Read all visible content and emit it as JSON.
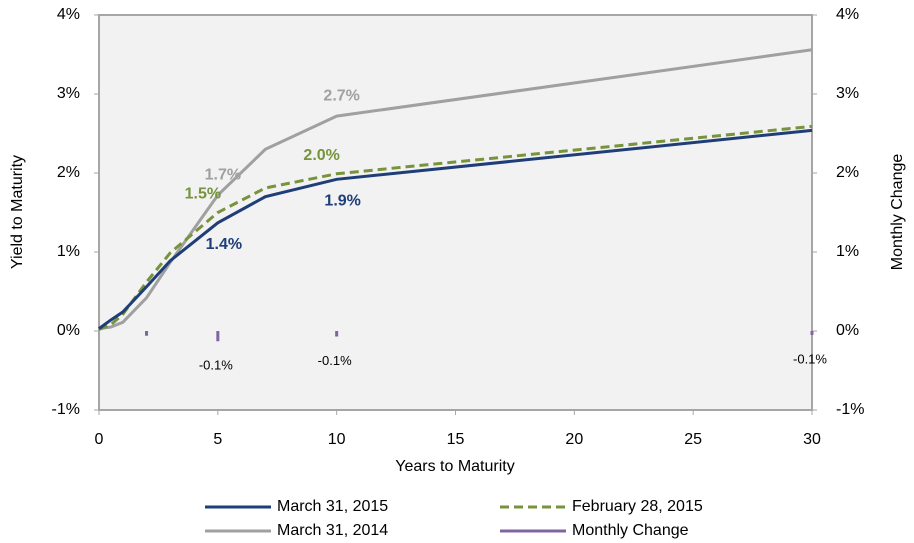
{
  "chart_data": {
    "type": "line",
    "x_label": "Years to Maturity",
    "y_label": "Yield to Maturity",
    "y2_label": "Monthly Change",
    "x": [
      0,
      0.5,
      1,
      2,
      3,
      5,
      7,
      10,
      30
    ],
    "series": [
      {
        "name": "March 31, 2015",
        "color": "#1f3e78",
        "dash": false,
        "values": [
          0.03,
          0.14,
          0.24,
          0.56,
          0.89,
          1.37,
          1.7,
          1.92,
          2.54
        ],
        "value_labels": [
          null,
          null,
          null,
          null,
          null,
          "1.4%",
          null,
          "1.9%",
          null
        ]
      },
      {
        "name": "February 28, 2015",
        "color": "#77933c",
        "dash": true,
        "values": [
          0.02,
          0.08,
          0.21,
          0.62,
          0.99,
          1.5,
          1.81,
          1.99,
          2.59
        ],
        "value_labels": [
          null,
          null,
          null,
          null,
          null,
          "1.5%",
          null,
          "2.0%",
          null
        ]
      },
      {
        "name": "March 31, 2014",
        "color": "#a0a0a0",
        "dash": false,
        "values": [
          0.03,
          0.05,
          0.11,
          0.42,
          0.87,
          1.72,
          2.3,
          2.72,
          3.56
        ],
        "value_labels": [
          null,
          null,
          null,
          null,
          null,
          "1.7%",
          null,
          "2.7%",
          null
        ]
      },
      {
        "name": "Monthly Change",
        "color": "#8064a2",
        "axis": "y2",
        "mark": "tick",
        "x": [
          2,
          5,
          10,
          30
        ],
        "values": [
          -0.06,
          -0.13,
          -0.07,
          -0.05
        ],
        "value_labels": [
          null,
          "-0.1%",
          "-0.1%",
          "-0.1%"
        ]
      }
    ],
    "xlim": [
      0,
      30
    ],
    "xticks": [
      0,
      5,
      10,
      15,
      20,
      25,
      30
    ],
    "ylim": [
      -1,
      4
    ],
    "yticks": [
      {
        "value": -1,
        "label": "-1%"
      },
      {
        "value": 0,
        "label": "0%"
      },
      {
        "value": 1,
        "label": "1%"
      },
      {
        "value": 2,
        "label": "2%"
      },
      {
        "value": 3,
        "label": "3%"
      },
      {
        "value": 4,
        "label": "4%"
      }
    ],
    "y2lim": [
      -1,
      4
    ],
    "y2ticks": [
      {
        "value": -1,
        "label": "-1%"
      },
      {
        "value": 0,
        "label": "0%"
      },
      {
        "value": 1,
        "label": "1%"
      },
      {
        "value": 2,
        "label": "2%"
      },
      {
        "value": 3,
        "label": "3%"
      },
      {
        "value": 4,
        "label": "4%"
      }
    ],
    "legend": "bottom"
  }
}
